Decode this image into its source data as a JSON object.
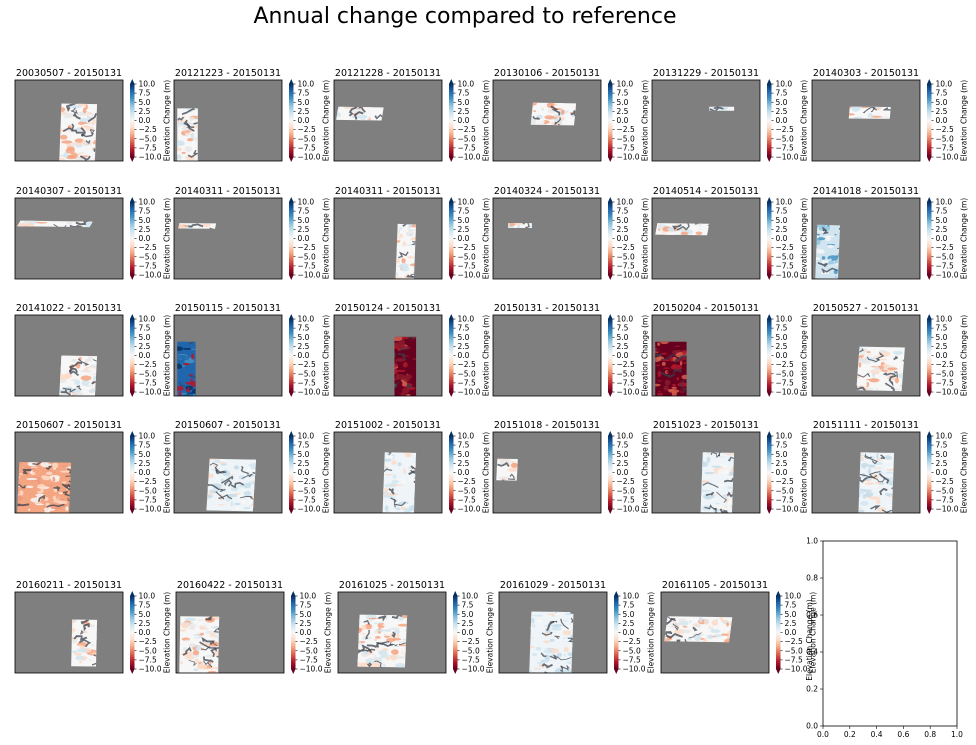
{
  "figure_title": "Annual change compared to reference",
  "colors": {
    "map_background": "#7f7f7f",
    "colormap": [
      "#67001f",
      "#b2182b",
      "#d6604d",
      "#f4a582",
      "#fddbc7",
      "#f7f7f7",
      "#d1e5f0",
      "#92c5de",
      "#4393c3",
      "#2166ac",
      "#053061"
    ],
    "terrain_dark": "#3a3f4a",
    "under_color": "#67001f",
    "over_color": "#053061"
  },
  "chart_data": {
    "type": "heatmap",
    "colorbar": {
      "label": "Elevation Change (m)",
      "range": [
        -10,
        10
      ],
      "ticks": [
        "10.0",
        "7.5",
        "5.0",
        "2.5",
        "0.0",
        "−2.5",
        "−5.0",
        "−7.5",
        "−10.0"
      ],
      "extend": "both"
    },
    "panels": [
      {
        "title": "20030507 - 20150131",
        "footprint": [
          0.41,
          0.29,
          0.76,
          1.0
        ],
        "tone": "mixed",
        "skew": 0.02
      },
      {
        "title": "20121223 - 20150131",
        "footprint": [
          0.03,
          0.35,
          0.22,
          1.0
        ],
        "tone": "mixed",
        "skew": 0.0
      },
      {
        "title": "20121228 - 20150131",
        "footprint": [
          0.02,
          0.33,
          0.46,
          0.5
        ],
        "tone": "mixed",
        "skew": 0.02
      },
      {
        "title": "20130106 - 20150131",
        "footprint": [
          0.35,
          0.28,
          0.77,
          0.56
        ],
        "tone": "mixed",
        "skew": 0.02
      },
      {
        "title": "20131229 - 20150131",
        "footprint": [
          0.53,
          0.33,
          0.76,
          0.38
        ],
        "tone": "mixed",
        "skew": 0.0
      },
      {
        "title": "20140303 - 20150131",
        "footprint": [
          0.34,
          0.33,
          0.73,
          0.48
        ],
        "tone": "mixed",
        "skew": 0.01
      },
      {
        "title": "20140307 - 20150131",
        "footprint": [
          0.02,
          0.28,
          0.72,
          0.36
        ],
        "tone": "mixed",
        "skew": 0.03
      },
      {
        "title": "20140311 - 20150131",
        "footprint": [
          0.04,
          0.31,
          0.39,
          0.38
        ],
        "tone": "mixed",
        "skew": 0.01
      },
      {
        "title": "20140311 - 20150131",
        "footprint": [
          0.57,
          0.32,
          0.76,
          1.0
        ],
        "tone": "mixed",
        "skew": 0.02
      },
      {
        "title": "20140324 - 20150131",
        "footprint": [
          0.14,
          0.31,
          0.36,
          0.37
        ],
        "tone": "mixed",
        "skew": 0.0
      },
      {
        "title": "20140514 - 20150131",
        "footprint": [
          0.03,
          0.31,
          0.53,
          0.46
        ],
        "tone": "mixed",
        "skew": 0.02
      },
      {
        "title": "20141018 - 20150131",
        "footprint": [
          0.03,
          0.33,
          0.26,
          1.0
        ],
        "tone": "blue",
        "skew": 0.02
      },
      {
        "title": "20141022 - 20150131",
        "footprint": [
          0.41,
          0.5,
          0.76,
          1.0
        ],
        "tone": "mixed",
        "skew": 0.02
      },
      {
        "title": "20150115 - 20150131",
        "footprint": [
          0.03,
          0.33,
          0.2,
          1.0
        ],
        "tone": "deepblue",
        "skew": 0.0
      },
      {
        "title": "20150124 - 20150131",
        "footprint": [
          0.56,
          0.27,
          0.76,
          1.0
        ],
        "tone": "red",
        "skew": 0.0
      },
      {
        "title": "20150131 - 20150131",
        "footprint": null,
        "tone": "none",
        "skew": 0.0
      },
      {
        "title": "20150204 - 20150131",
        "footprint": [
          0.03,
          0.33,
          0.32,
          1.0
        ],
        "tone": "red",
        "skew": 0.0
      },
      {
        "title": "20150527 - 20150131",
        "footprint": [
          0.41,
          0.39,
          0.86,
          0.94
        ],
        "tone": "mixed",
        "skew": 0.03
      },
      {
        "title": "20150607 - 20150131",
        "footprint": [
          0.02,
          0.37,
          0.52,
          1.0
        ],
        "tone": "salmon",
        "skew": 0.02
      },
      {
        "title": "20150607 - 20150131",
        "footprint": [
          0.3,
          0.33,
          0.76,
          0.98
        ],
        "tone": "lightblue",
        "skew": 0.03
      },
      {
        "title": "20151002 - 20150131",
        "footprint": [
          0.45,
          0.25,
          0.76,
          1.0
        ],
        "tone": "lightblue",
        "skew": 0.02
      },
      {
        "title": "20151018 - 20150131",
        "footprint": [
          0.03,
          0.33,
          0.23,
          0.6
        ],
        "tone": "mixed",
        "skew": 0.01
      },
      {
        "title": "20151023 - 20150131",
        "footprint": [
          0.45,
          0.25,
          0.76,
          1.0
        ],
        "tone": "lightblue",
        "skew": 0.02
      },
      {
        "title": "20151111 - 20150131",
        "footprint": [
          0.43,
          0.25,
          0.76,
          1.0
        ],
        "tone": "lightblue",
        "skew": 0.02
      },
      {
        "title": "20160211 - 20150131",
        "footprint": [
          0.52,
          0.34,
          0.76,
          0.92
        ],
        "tone": "mixed",
        "skew": 0.01
      },
      {
        "title": "20160422 - 20150131",
        "footprint": [
          0.03,
          0.3,
          0.4,
          1.0
        ],
        "tone": "mixed",
        "skew": 0.01
      },
      {
        "title": "20161025 - 20150131",
        "footprint": [
          0.18,
          0.28,
          0.64,
          0.93
        ],
        "tone": "mixed",
        "skew": 0.02
      },
      {
        "title": "20161029 - 20150131",
        "footprint": [
          0.28,
          0.24,
          0.69,
          1.0
        ],
        "tone": "lightblue",
        "skew": 0.02
      },
      {
        "title": "20161105 - 20150131",
        "footprint": [
          0.03,
          0.3,
          0.66,
          0.62
        ],
        "tone": "mixed",
        "skew": 0.03
      }
    ],
    "empty_axes": {
      "xlim": [
        0.0,
        1.0
      ],
      "ylim": [
        0.0,
        1.0
      ],
      "xticks": [
        "0.0",
        "0.2",
        "0.4",
        "0.6",
        "0.8",
        "1.0"
      ],
      "yticks": [
        "0.0",
        "0.2",
        "0.4",
        "0.6",
        "0.8",
        "1.0"
      ]
    }
  }
}
